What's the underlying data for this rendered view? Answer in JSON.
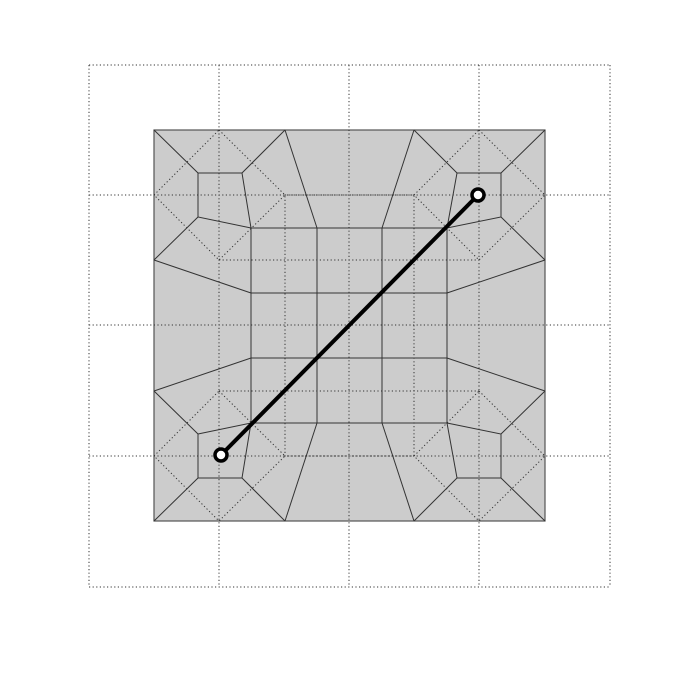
{
  "colors": {
    "background": "#ffffff",
    "square_fill": "#cccccc",
    "stroke": "#000000"
  },
  "diagram": {
    "outer_grid": {
      "columns": 4,
      "rows": 4,
      "style": "dotted"
    },
    "filled_square": {
      "style": "solid"
    },
    "diagonal_segment": {
      "from_marker": "circle-marker",
      "to_marker": "circle-marker"
    }
  }
}
